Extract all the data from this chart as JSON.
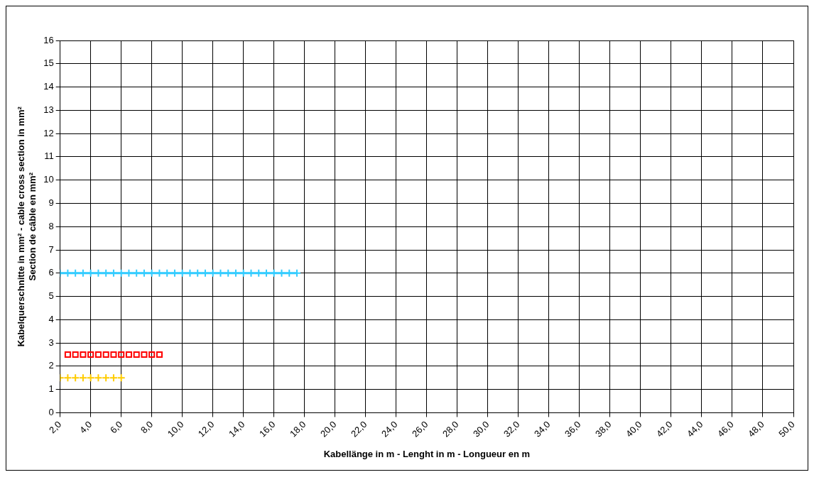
{
  "chart_data": {
    "type": "scatter",
    "xlabel": "Kabellänge in m - Lenght in m - Longueur en m",
    "ylabel": "Kabelquerschnitte in mm² - cable cross section in mm²\nSection de câble en mm²",
    "xlim": [
      2,
      50
    ],
    "xticks": [
      {
        "value": 2,
        "label": "2,0"
      },
      {
        "value": 4,
        "label": "4,0"
      },
      {
        "value": 6,
        "label": "6,0"
      },
      {
        "value": 8,
        "label": "8,0"
      },
      {
        "value": 10,
        "label": "10,0"
      },
      {
        "value": 12,
        "label": "12,0"
      },
      {
        "value": 14,
        "label": "14,0"
      },
      {
        "value": 16,
        "label": "16,0"
      },
      {
        "value": 18,
        "label": "18,0"
      },
      {
        "value": 20,
        "label": "20,0"
      },
      {
        "value": 22,
        "label": "22,0"
      },
      {
        "value": 24,
        "label": "24,0"
      },
      {
        "value": 26,
        "label": "26,0"
      },
      {
        "value": 28,
        "label": "28,0"
      },
      {
        "value": 30,
        "label": "30,0"
      },
      {
        "value": 32,
        "label": "32,0"
      },
      {
        "value": 34,
        "label": "34,0"
      },
      {
        "value": 36,
        "label": "36,0"
      },
      {
        "value": 38,
        "label": "38,0"
      },
      {
        "value": 40,
        "label": "40,0"
      },
      {
        "value": 42,
        "label": "42,0"
      },
      {
        "value": 44,
        "label": "44,0"
      },
      {
        "value": 46,
        "label": "46,0"
      },
      {
        "value": 48,
        "label": "48,0"
      },
      {
        "value": 50,
        "label": "50,0"
      }
    ],
    "ylim": [
      0,
      16
    ],
    "yticks": [
      0,
      1,
      2,
      3,
      4,
      5,
      6,
      7,
      8,
      9,
      10,
      11,
      12,
      13,
      14,
      15,
      16
    ],
    "grid": true,
    "legend": false,
    "series": [
      {
        "type": "line",
        "color": "#33ccff",
        "marker": "cross",
        "x": [
          2,
          2.5,
          3,
          3.5,
          4,
          4.5,
          5,
          5.5,
          6,
          6.5,
          7,
          7.5,
          8,
          8.5,
          9,
          9.5,
          10,
          10.5,
          11,
          11.5,
          12,
          12.5,
          13,
          13.5,
          14,
          14.5,
          15,
          15.5,
          16,
          16.5,
          17,
          17.5
        ],
        "values": [
          6,
          6,
          6,
          6,
          6,
          6,
          6,
          6,
          6,
          6,
          6,
          6,
          6,
          6,
          6,
          6,
          6,
          6,
          6,
          6,
          6,
          6,
          6,
          6,
          6,
          6,
          6,
          6,
          6,
          6,
          6,
          6
        ]
      },
      {
        "type": "scatter",
        "color": "#ff0000",
        "marker": "square",
        "x": [
          2.5,
          3,
          3.5,
          4,
          4.5,
          5,
          5.5,
          6,
          6.5,
          7,
          7.5,
          8,
          8.5
        ],
        "values": [
          2.5,
          2.5,
          2.5,
          2.5,
          2.5,
          2.5,
          2.5,
          2.5,
          2.5,
          2.5,
          2.5,
          2.5,
          2.5
        ]
      },
      {
        "type": "scatter",
        "color": "#ffcc00",
        "marker": "cross",
        "x": [
          2,
          2.5,
          3,
          3.5,
          4,
          4.5,
          5,
          5.5,
          6
        ],
        "values": [
          1.5,
          1.5,
          1.5,
          1.5,
          1.5,
          1.5,
          1.5,
          1.5,
          1.5
        ]
      }
    ]
  }
}
